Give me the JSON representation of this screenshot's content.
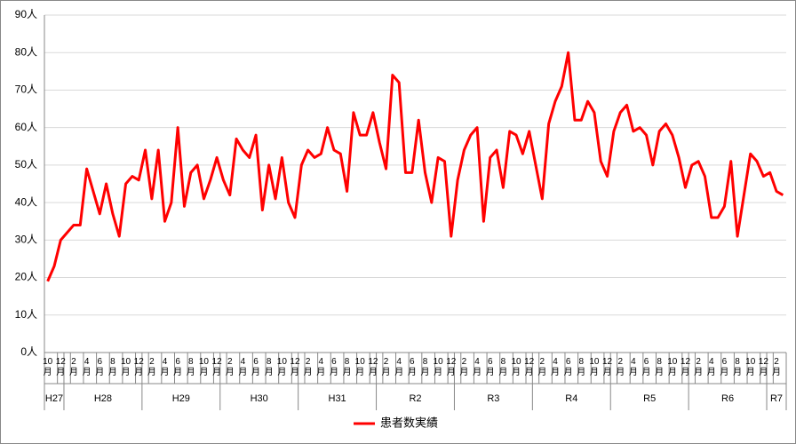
{
  "chart_data": {
    "type": "line",
    "categories": [
      "10月",
      null,
      "12月",
      null,
      "2月",
      null,
      "4月",
      null,
      "6月",
      null,
      "8月",
      null,
      "10月",
      null,
      "12月",
      null,
      "2月",
      null,
      "4月",
      null,
      "6月",
      null,
      "8月",
      null,
      "10月",
      null,
      "12月",
      null,
      "2月",
      null,
      "4月",
      null,
      "6月",
      null,
      "8月",
      null,
      "10月",
      null,
      "12月",
      null,
      "2月",
      null,
      "4月",
      null,
      "6月",
      null,
      "8月",
      null,
      "10月",
      null,
      "12月",
      null,
      "2月",
      null,
      "4月",
      null,
      "6月",
      null,
      "8月",
      null,
      "10月",
      null,
      "12月",
      null,
      "2月",
      null,
      "4月",
      null,
      "6月",
      null,
      "8月",
      null,
      "10月",
      null,
      "12月",
      null,
      "2月",
      null,
      "4月",
      null,
      "6月",
      null,
      "8月",
      null,
      "10月",
      null,
      "12月",
      null,
      "2月",
      null,
      "4月",
      null,
      "6月",
      null,
      "8月",
      null,
      "10月",
      null,
      "12月",
      null,
      "2月",
      null,
      "4月",
      null,
      "6月",
      null,
      "8月",
      null,
      "10月",
      null,
      "12月",
      null,
      "2月",
      null
    ],
    "groups": [
      {
        "label": "H27",
        "count": 3
      },
      {
        "label": "H28",
        "count": 12
      },
      {
        "label": "H29",
        "count": 12
      },
      {
        "label": "H30",
        "count": 12
      },
      {
        "label": "H31",
        "count": 12
      },
      {
        "label": "R2",
        "count": 12
      },
      {
        "label": "R3",
        "count": 12
      },
      {
        "label": "R4",
        "count": 12
      },
      {
        "label": "R5",
        "count": 12
      },
      {
        "label": "R6",
        "count": 12
      },
      {
        "label": "R7",
        "count": 3
      }
    ],
    "series": [
      {
        "name": "患者数実績",
        "color": "#ff0000",
        "values": [
          19,
          23,
          30,
          32,
          34,
          34,
          49,
          43,
          37,
          45,
          37,
          31,
          45,
          47,
          46,
          54,
          41,
          54,
          35,
          40,
          60,
          39,
          48,
          50,
          41,
          46,
          52,
          46,
          42,
          57,
          54,
          52,
          58,
          38,
          50,
          41,
          52,
          40,
          36,
          50,
          54,
          52,
          53,
          60,
          54,
          53,
          43,
          64,
          58,
          58,
          64,
          56,
          49,
          74,
          72,
          48,
          48,
          62,
          48,
          40,
          52,
          51,
          31,
          46,
          54,
          58,
          60,
          35,
          52,
          54,
          44,
          59,
          58,
          53,
          59,
          50,
          41,
          61,
          67,
          71,
          80,
          62,
          62,
          67,
          64,
          51,
          47,
          59,
          64,
          66,
          59,
          60,
          58,
          50,
          59,
          61,
          58,
          52,
          44,
          50,
          51,
          47,
          36,
          36,
          39,
          51,
          31,
          42,
          53,
          51,
          47,
          48,
          43,
          42
        ]
      }
    ],
    "ylim": [
      0,
      90
    ],
    "yticks": [
      {
        "value": 0,
        "label": "0人"
      },
      {
        "value": 10,
        "label": "10人"
      },
      {
        "value": 20,
        "label": "20人"
      },
      {
        "value": 30,
        "label": "30人"
      },
      {
        "value": 40,
        "label": "40人"
      },
      {
        "value": 50,
        "label": "50人"
      },
      {
        "value": 60,
        "label": "60人"
      },
      {
        "value": 70,
        "label": "70人"
      },
      {
        "value": 80,
        "label": "80人"
      },
      {
        "value": 90,
        "label": "90人"
      }
    ],
    "grid": true,
    "legend": "bottom"
  }
}
